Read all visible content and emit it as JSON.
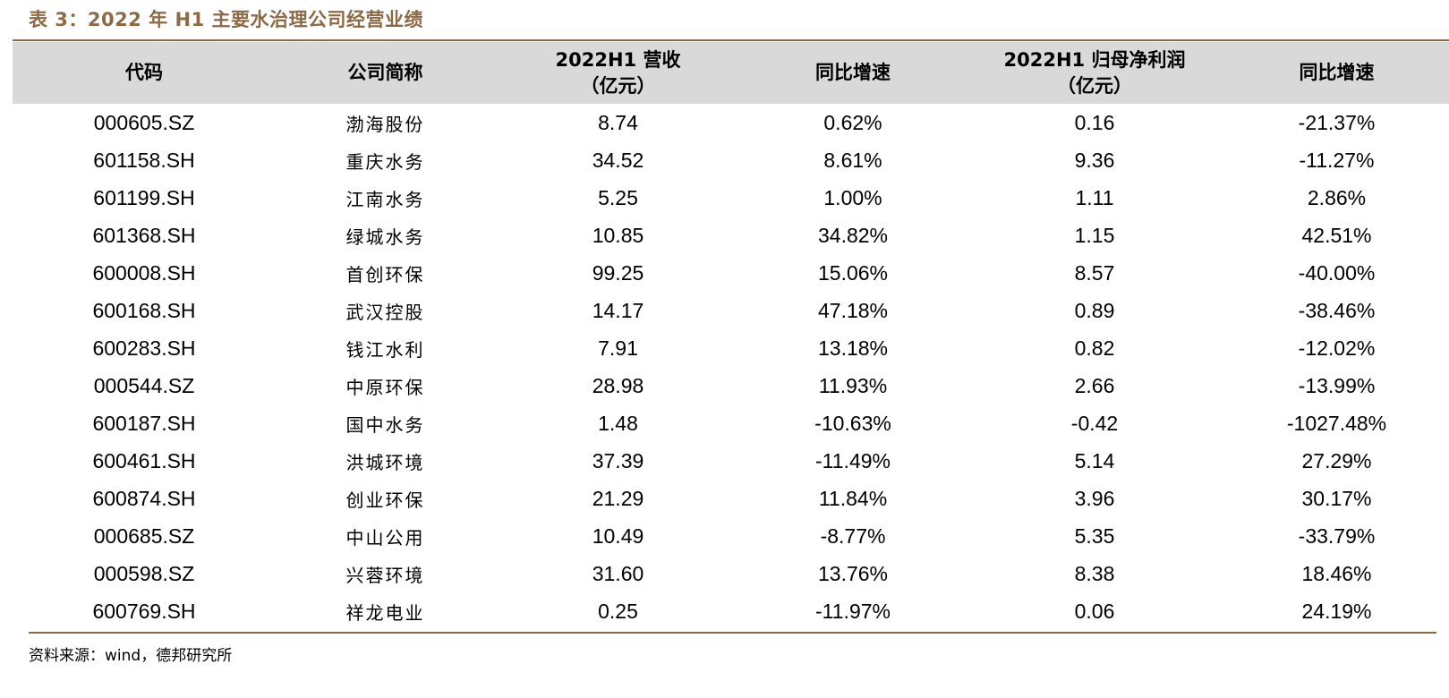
{
  "title": "表 3：2022 年 H1 主要水治理公司经营业绩",
  "table": {
    "headers": [
      {
        "line1": "代码",
        "line2": ""
      },
      {
        "line1": "公司简称",
        "line2": ""
      },
      {
        "line1": "2022H1 营收",
        "line2": "（亿元）"
      },
      {
        "line1": "同比增速",
        "line2": ""
      },
      {
        "line1": "2022H1 归母净利润",
        "line2": "（亿元）"
      },
      {
        "line1": "同比增速",
        "line2": ""
      }
    ],
    "rows": [
      [
        "000605.SZ",
        "渤海股份",
        "8.74",
        "0.62%",
        "0.16",
        "-21.37%"
      ],
      [
        "601158.SH",
        "重庆水务",
        "34.52",
        "8.61%",
        "9.36",
        "-11.27%"
      ],
      [
        "601199.SH",
        "江南水务",
        "5.25",
        "1.00%",
        "1.11",
        "2.86%"
      ],
      [
        "601368.SH",
        "绿城水务",
        "10.85",
        "34.82%",
        "1.15",
        "42.51%"
      ],
      [
        "600008.SH",
        "首创环保",
        "99.25",
        "15.06%",
        "8.57",
        "-40.00%"
      ],
      [
        "600168.SH",
        "武汉控股",
        "14.17",
        "47.18%",
        "0.89",
        "-38.46%"
      ],
      [
        "600283.SH",
        "钱江水利",
        "7.91",
        "13.18%",
        "0.82",
        "-12.02%"
      ],
      [
        "000544.SZ",
        "中原环保",
        "28.98",
        "11.93%",
        "2.66",
        "-13.99%"
      ],
      [
        "600187.SH",
        "国中水务",
        "1.48",
        "-10.63%",
        "-0.42",
        "-1027.48%"
      ],
      [
        "600461.SH",
        "洪城环境",
        "37.39",
        "-11.49%",
        "5.14",
        "27.29%"
      ],
      [
        "600874.SH",
        "创业环保",
        "21.29",
        "11.84%",
        "3.96",
        "30.17%"
      ],
      [
        "000685.SZ",
        "中山公用",
        "10.49",
        "-8.77%",
        "5.35",
        "-33.79%"
      ],
      [
        "000598.SZ",
        "兴蓉环境",
        "31.60",
        "13.76%",
        "8.38",
        "18.46%"
      ],
      [
        "600769.SH",
        "祥龙电业",
        "0.25",
        "-11.97%",
        "0.06",
        "24.19%"
      ]
    ]
  },
  "source": "资料来源：wind，德邦研究所",
  "colors": {
    "accent": "#8c6a46",
    "header_background": "#d9d9d9",
    "text": "#000000"
  }
}
